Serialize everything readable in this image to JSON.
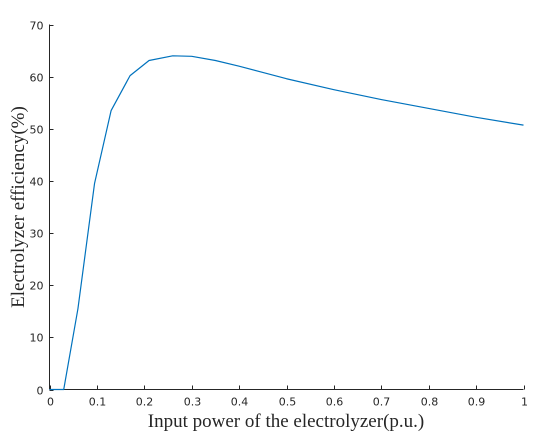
{
  "chart_data": {
    "type": "line",
    "title": "",
    "xlabel": "Input power of the electrolyzer(p.u.)",
    "ylabel": "Electrolyzer efficiency(%)",
    "xlim": [
      0,
      1
    ],
    "ylim": [
      0,
      70
    ],
    "xticks": [
      0,
      0.1,
      0.2,
      0.3,
      0.4,
      0.5,
      0.6,
      0.7,
      0.8,
      0.9,
      1
    ],
    "xtick_labels": [
      "0",
      "0.1",
      "0.2",
      "0.3",
      "0.4",
      "0.5",
      "0.6",
      "0.7",
      "0.8",
      "0.9",
      "1"
    ],
    "yticks": [
      0,
      10,
      20,
      30,
      40,
      50,
      60,
      70
    ],
    "ytick_labels": [
      "0",
      "10",
      "20",
      "30",
      "40",
      "50",
      "60",
      "70"
    ],
    "grid": false,
    "legend": "none",
    "series": [
      {
        "color": "#0072BD",
        "x": [
          0,
          0.03,
          0.06,
          0.095,
          0.13,
          0.17,
          0.21,
          0.26,
          0.3,
          0.35,
          0.4,
          0.45,
          0.5,
          0.6,
          0.7,
          0.8,
          0.9,
          1.0
        ],
        "y": [
          0,
          0,
          15.5,
          39.5,
          53.5,
          60.2,
          63.1,
          64.0,
          63.9,
          63.1,
          62.0,
          60.8,
          59.6,
          57.5,
          55.6,
          53.9,
          52.2,
          50.7
        ]
      }
    ]
  }
}
